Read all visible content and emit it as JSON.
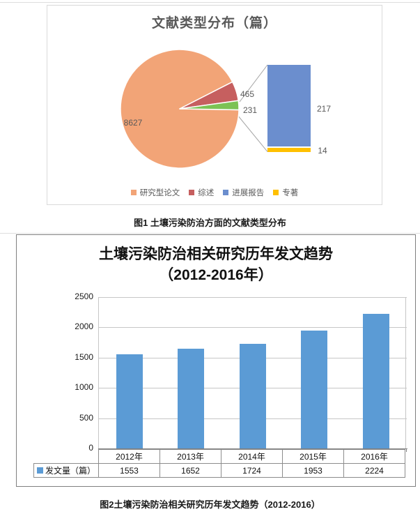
{
  "page": {
    "caption1": "图1  土壤污染防治方面的文献类型分布",
    "caption2": "图2土壤污染防治相关研究历年发文趋势（2012-2016）"
  },
  "chart_data": [
    {
      "type": "pie",
      "subtype": "bar-of-pie",
      "title": "文献类型分布（篇）",
      "slices": [
        {
          "label": "研究型论文",
          "value": 8627,
          "color": "#F2A477"
        },
        {
          "label": "综述",
          "value": 465,
          "color": "#C65F5F"
        },
        {
          "label": "进展报告+专著(展开为条形)",
          "value": 231,
          "color": "#7CC254"
        }
      ],
      "bar_breakdown": [
        {
          "label": "进展报告",
          "value": 217,
          "color": "#6B8ECE"
        },
        {
          "label": "专著",
          "value": 14,
          "color": "#FFC000"
        }
      ],
      "legend": [
        "研究型论文",
        "综述",
        "进展报告",
        "专著"
      ],
      "legend_position": "bottom",
      "data_labels_shown": [
        8627,
        465,
        231,
        217,
        14
      ]
    },
    {
      "type": "bar",
      "title": "土壤污染防治相关研究历年发文趋势（2012-2016年）",
      "title_line1": "土壤污染防治相关研究历年发文趋势",
      "title_line2": "（2012-2016年）",
      "categories": [
        "2012年",
        "2013年",
        "2014年",
        "2015年",
        "2016年"
      ],
      "series": [
        {
          "name": "发文量（篇）",
          "color": "#5B9BD5",
          "values": [
            1553,
            1652,
            1724,
            1953,
            2224
          ]
        }
      ],
      "ylabel": "",
      "xlabel": "",
      "ylim": [
        0,
        2500
      ],
      "yticks": [
        0,
        500,
        1000,
        1500,
        2000,
        2500
      ],
      "grid": true,
      "legend_position": "table-row-header",
      "data_table_shown": true
    }
  ]
}
